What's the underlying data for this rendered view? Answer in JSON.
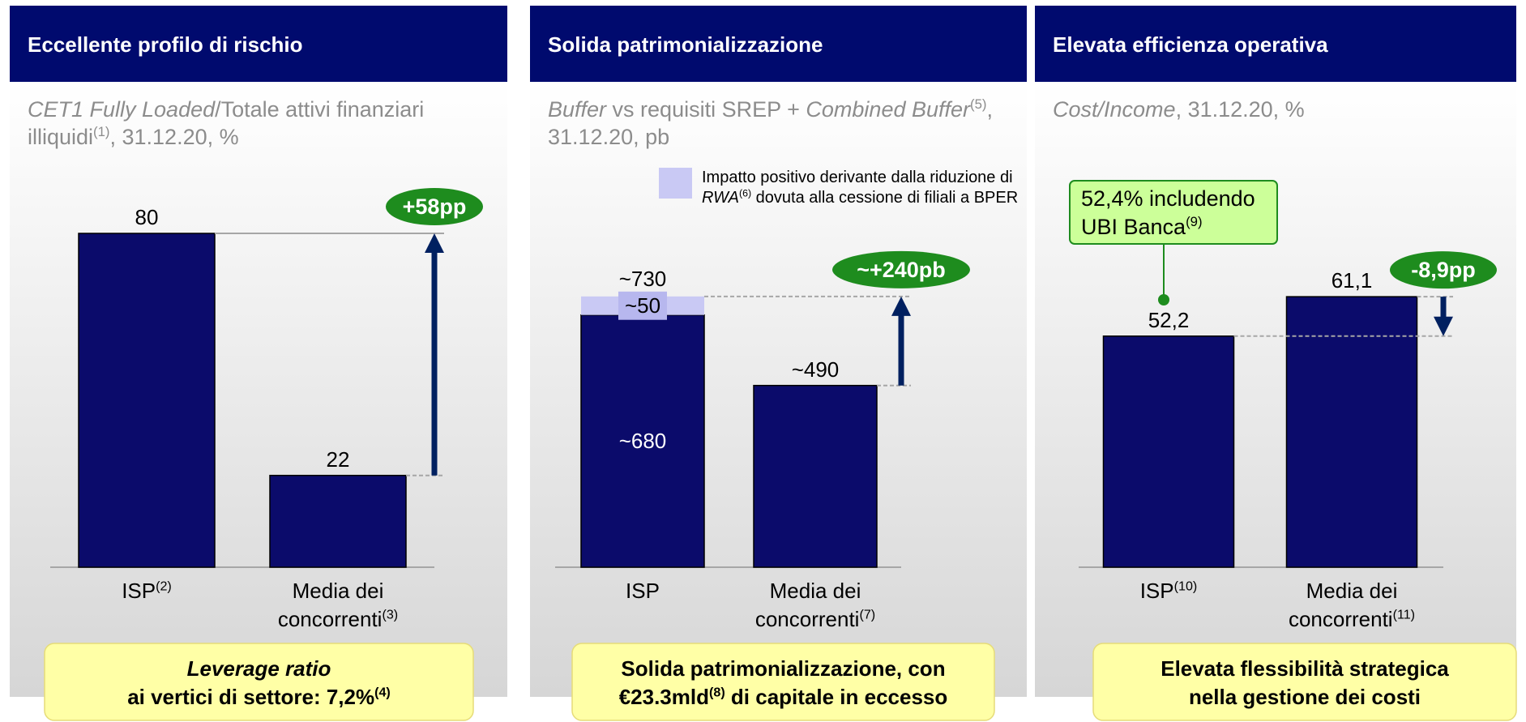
{
  "chart_data": [
    {
      "type": "bar",
      "title": "Eccellente profilo di rischio",
      "subtitle": [
        {
          "text": "CET1 Fully Loaded",
          "style": "italic"
        },
        {
          "text": "/Totale attivi finanziari illiquidi",
          "style": "normal"
        },
        {
          "text": "(1)",
          "style": "sup"
        },
        {
          "text": ", 31.12.20, %",
          "style": "normal"
        }
      ],
      "categories": [
        "ISP",
        "Media dei concorrenti"
      ],
      "category_notes": [
        "(2)",
        "(3)"
      ],
      "values": [
        80,
        22
      ],
      "color": "#0b0b6b",
      "ylim": [
        0,
        80
      ],
      "delta_label": "+58pp",
      "footer": [
        [
          {
            "text": "Leverage ratio",
            "style": "italic"
          }
        ],
        [
          {
            "text": "ai vertici di settore: 7,2%",
            "style": "normal"
          },
          {
            "text": "(4)",
            "style": "sup"
          }
        ]
      ]
    },
    {
      "type": "stacked_bar",
      "title": "Solida patrimonializzazione",
      "subtitle": [
        {
          "text": "Buffer",
          "style": "italic"
        },
        {
          "text": " vs requisiti SREP + ",
          "style": "normal"
        },
        {
          "text": "Combined Buffer",
          "style": "italic"
        },
        {
          "text": "(5)",
          "style": "sup"
        },
        {
          "text": ", 31.12.20, pb",
          "style": "normal"
        }
      ],
      "categories": [
        "ISP",
        "Media dei concorrenti"
      ],
      "category_notes": [
        null,
        "(7)"
      ],
      "series": [
        {
          "color": "#0b0b6b",
          "values": [
            680,
            490
          ],
          "value_labels": [
            "~680",
            "~490"
          ]
        },
        {
          "color": "#c9c9f4",
          "values": [
            50,
            null
          ],
          "value_labels": [
            "~50",
            null
          ]
        }
      ],
      "legend": [
        {
          "text": "Impatto positivo derivante dalla riduzione di ",
          "style": "normal"
        },
        {
          "text": "RWA",
          "style": "italic"
        },
        {
          "text": "(6)",
          "style": "sup"
        },
        {
          "text": " dovuta alla cessione di filiali a BPER",
          "style": "normal"
        }
      ],
      "total": 730,
      "total_label": "~730",
      "ylim": [
        0,
        900
      ],
      "delta_label": "~+240pb",
      "footer": [
        [
          {
            "text": "Solida patrimonializzazione, con",
            "style": "normal"
          }
        ],
        [
          {
            "text": "€23.3mld",
            "style": "normal"
          },
          {
            "text": "(8)",
            "style": "sup"
          },
          {
            "text": " di capitale in eccesso",
            "style": "normal"
          }
        ]
      ]
    },
    {
      "type": "bar",
      "title": "Elevata efficienza operativa",
      "subtitle": [
        {
          "text": "Cost/Income",
          "style": "italic"
        },
        {
          "text": ", 31.12.20, %",
          "style": "normal"
        }
      ],
      "categories": [
        "ISP",
        "Media dei concorrenti"
      ],
      "category_notes": [
        "(10)",
        "(11)"
      ],
      "values": [
        52.2,
        61.1
      ],
      "value_labels": [
        "52,2",
        "61,1"
      ],
      "color": "#0b0b6b",
      "ylim": [
        0,
        75.4
      ],
      "delta_label": "-8,9pp",
      "callout": [
        {
          "text": "52,4% includendo UBI Banca",
          "style": "normal"
        },
        {
          "text": "(9)",
          "style": "sup"
        }
      ],
      "footer": [
        [
          {
            "text": "Elevata flessibilità strategica",
            "style": "normal"
          }
        ],
        [
          {
            "text": "nella gestione dei costi",
            "style": "normal"
          }
        ]
      ]
    }
  ]
}
